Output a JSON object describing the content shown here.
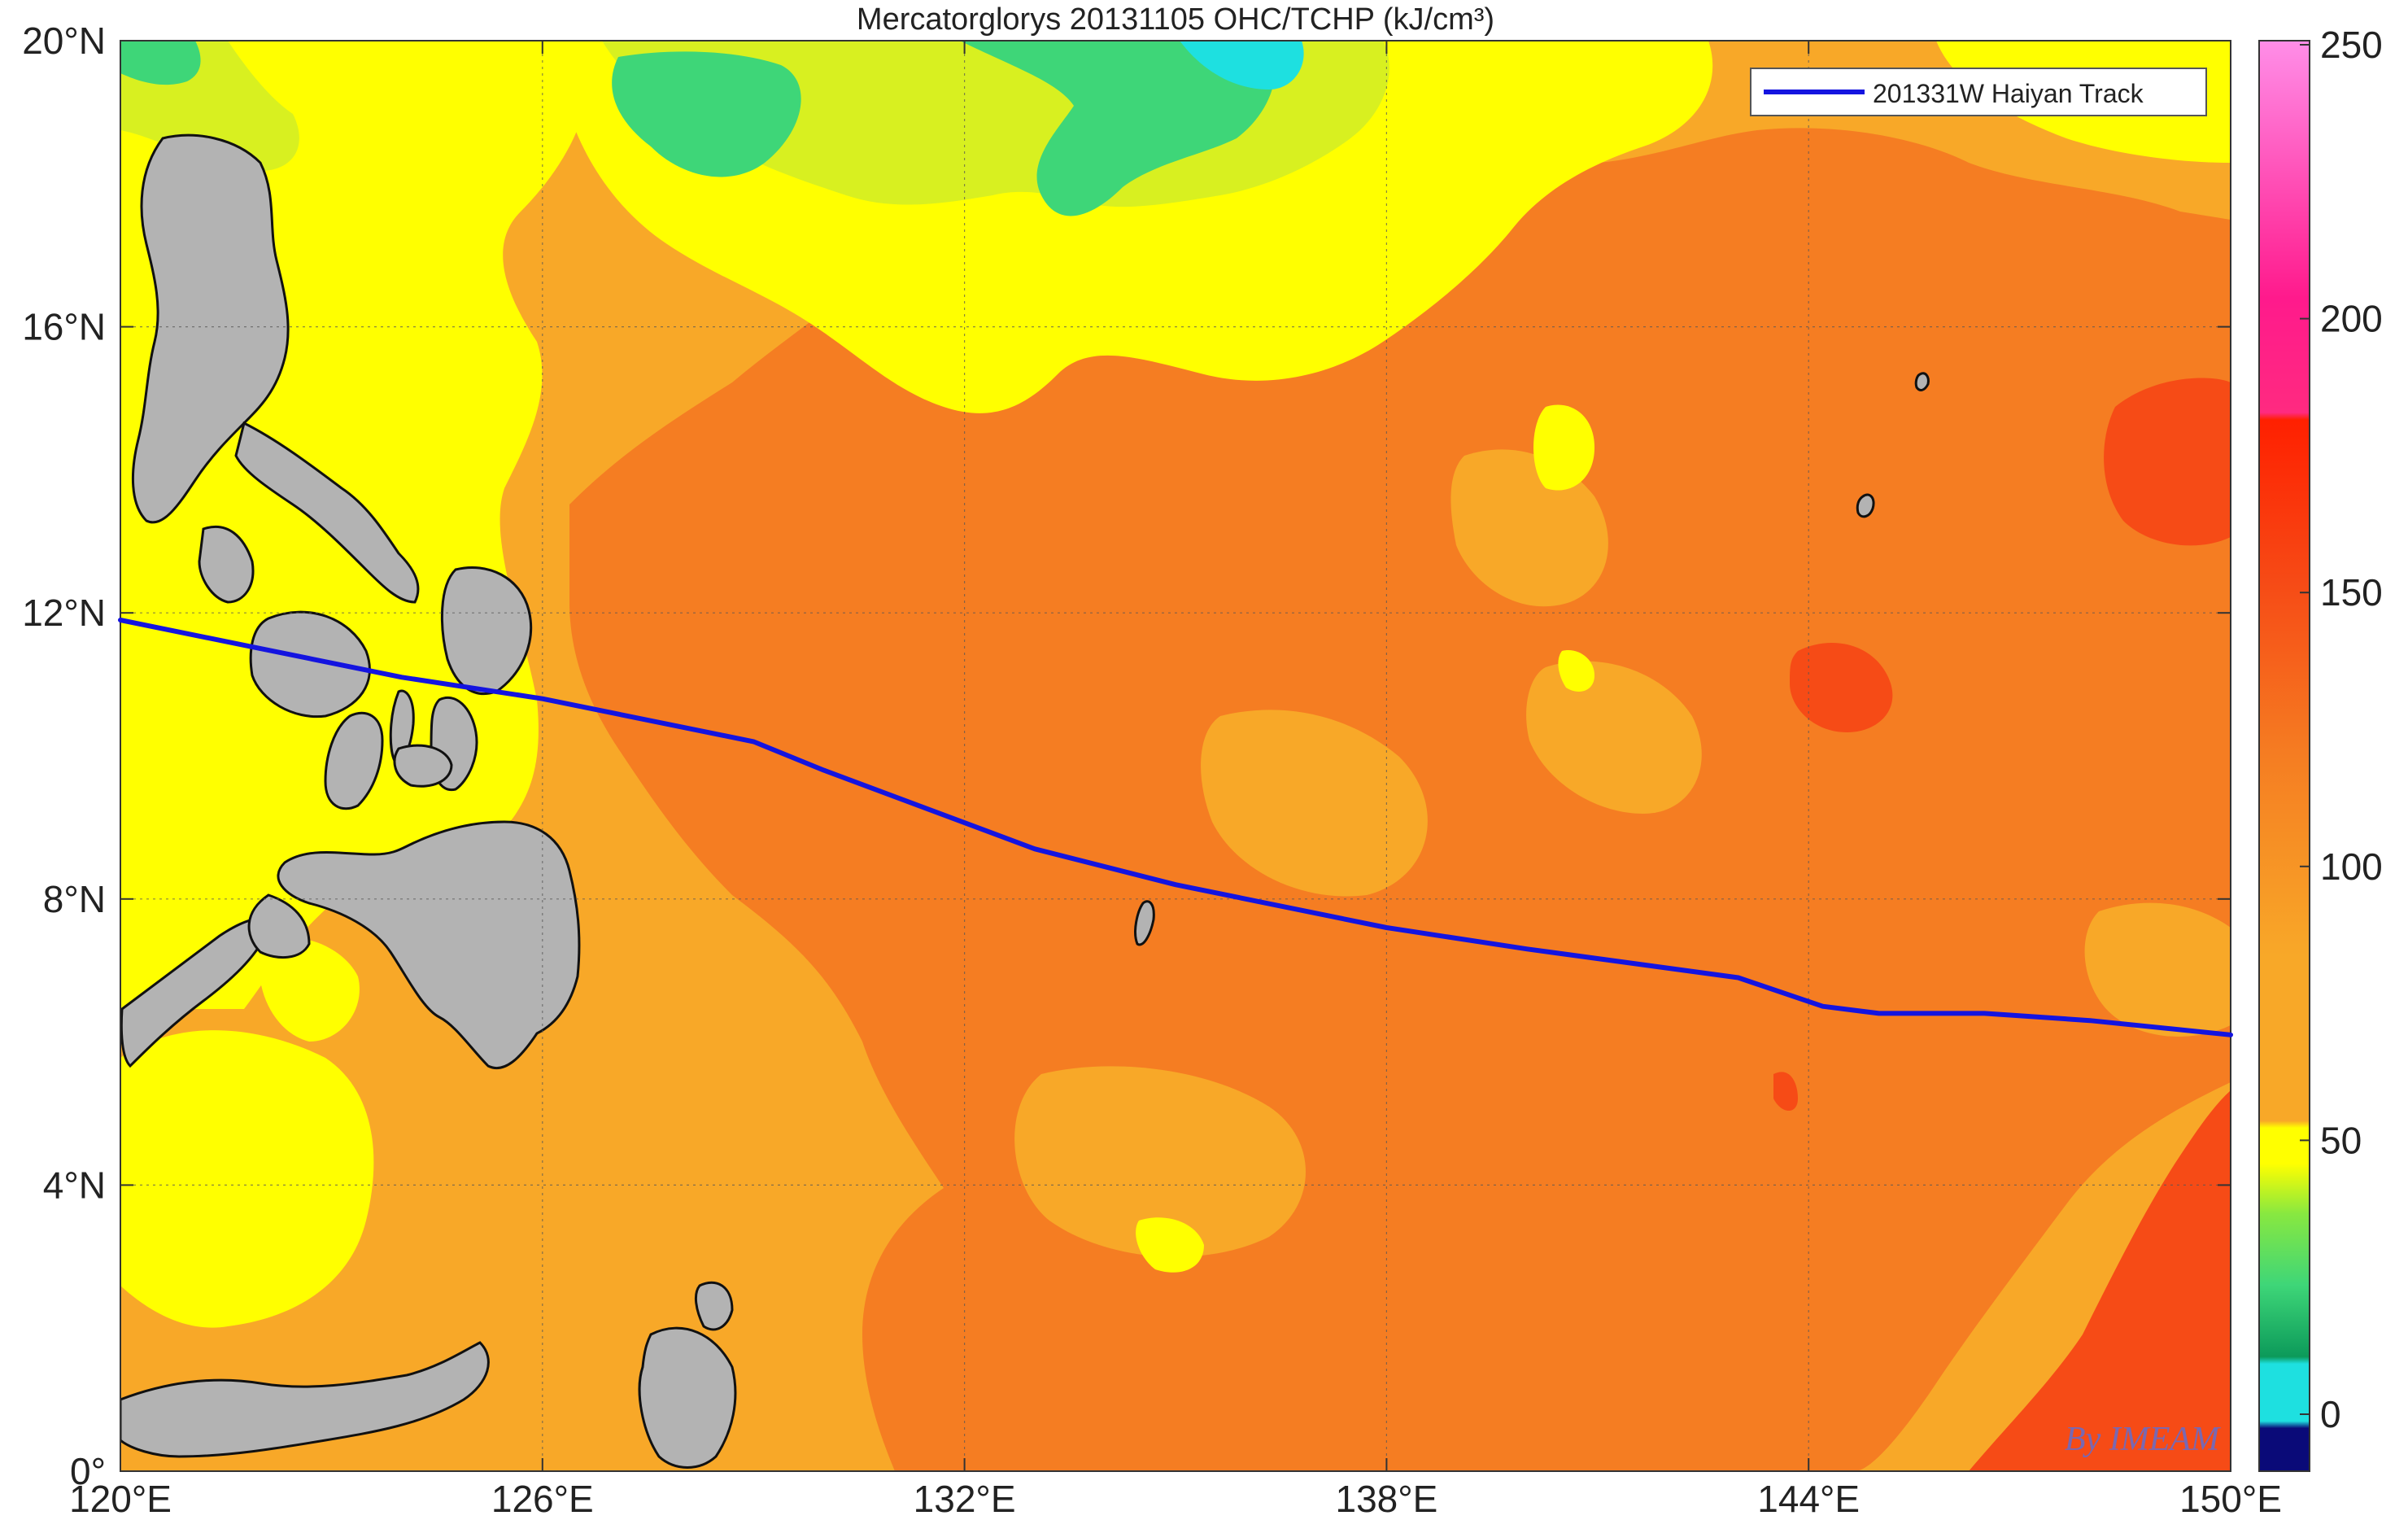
{
  "title": "Mercatorglorys 20131105 OHC/TCHP (kJ/cm³)",
  "watermark": "By IMEAM",
  "legend": {
    "label": "201331W Haiyan Track",
    "color": "#1414e0"
  },
  "axes": {
    "x_ticks": [
      "120°E",
      "126°E",
      "132°E",
      "138°E",
      "144°E",
      "150°E"
    ],
    "y_ticks": [
      "0°",
      "4°N",
      "8°N",
      "12°N",
      "16°N",
      "20°N"
    ]
  },
  "colorbar": {
    "ticks": [
      "0",
      "50",
      "100",
      "150",
      "200",
      "250"
    ],
    "colors": {
      "navy": "#0a0a78",
      "cyan": "#1ee0e0",
      "green": "#3ed678",
      "yellowgreen": "#d8f020",
      "yellow": "#ffff00",
      "lightorange": "#f8a828",
      "orange": "#f57d22",
      "red": "#f64b16",
      "brightred": "#ff2000",
      "pink": "#ff1a8c",
      "magenta": "#ff8ee8"
    }
  },
  "map_colors": {
    "land": "#b3b3b3",
    "coast": "#111111",
    "ocean_yellow": "#ffff00",
    "ocean_yellowgreen": "#d8f020",
    "ocean_green": "#3ed678",
    "ocean_cyan": "#1ee0e0",
    "ocean_lightorange": "#f8a828",
    "ocean_orange": "#f57d22",
    "ocean_red": "#f64b16"
  },
  "chart_data": {
    "type": "map",
    "title": "Mercatorglorys 20131105 OHC/TCHP (kJ/cm³)",
    "xlim": [
      120,
      150
    ],
    "ylim": [
      0,
      20
    ],
    "grid": true,
    "legend_position": "top-right",
    "colorbar_range": [
      0,
      250
    ],
    "series": [
      {
        "name": "201331W Haiyan Track",
        "lon": [
          150,
          148,
          146.5,
          145,
          144.2,
          143,
          140,
          138,
          135,
          133,
          130,
          129,
          126,
          124,
          122,
          120
        ],
        "lat": [
          6.1,
          6.3,
          6.4,
          6.4,
          6.5,
          6.9,
          7.3,
          7.6,
          8.2,
          8.7,
          9.8,
          10.2,
          10.8,
          11.1,
          11.5,
          11.9
        ]
      }
    ]
  }
}
